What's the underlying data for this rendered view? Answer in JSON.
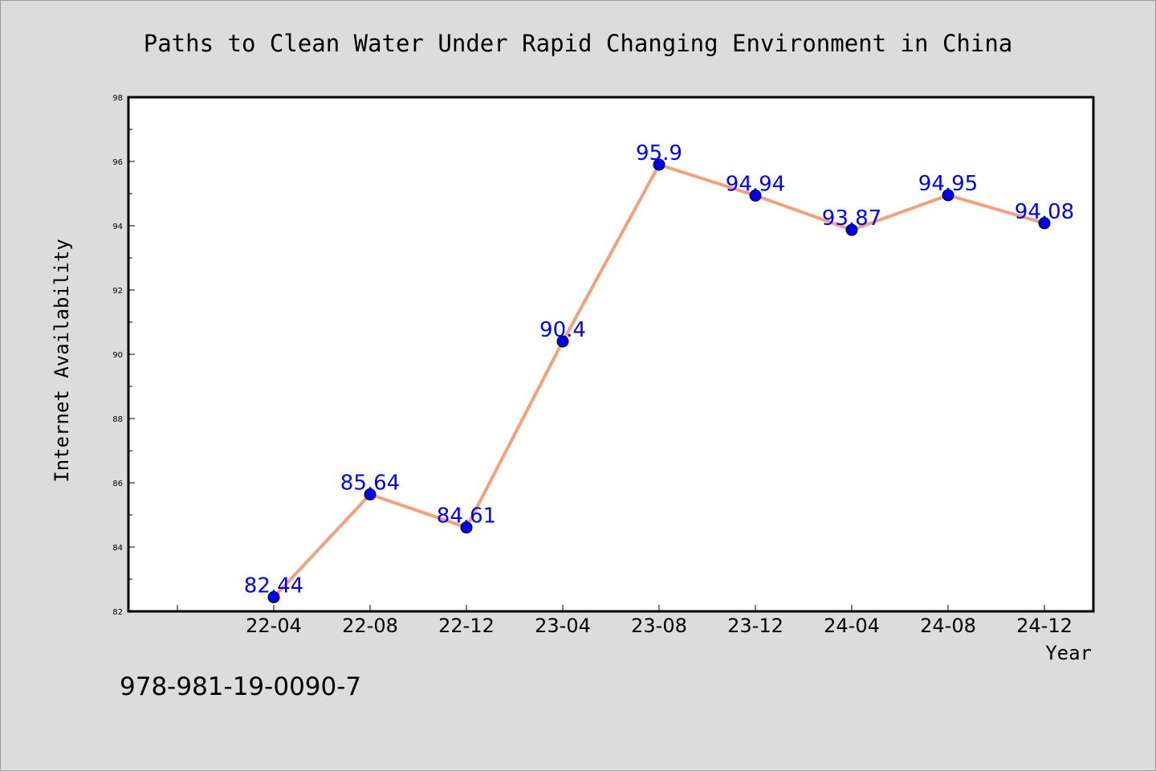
{
  "chart_data": {
    "type": "line",
    "title": "Paths to Clean Water Under Rapid Changing Environment in China",
    "xlabel": "Year",
    "ylabel": "Internet Availability",
    "categories": [
      "22-04",
      "22-08",
      "22-12",
      "23-04",
      "23-08",
      "23-12",
      "24-04",
      "24-08",
      "24-12"
    ],
    "series": [
      {
        "values": [
          82.44,
          85.64,
          84.61,
          90.4,
          95.9,
          94.94,
          93.87,
          94.95,
          94.08
        ],
        "labels": [
          "82.44",
          "85.64",
          "84.61",
          "90.4",
          "95.9",
          "94.94",
          "93.87",
          "94.95",
          "94.08"
        ],
        "line_color": "#f4a07c",
        "marker_color": "#0000ee"
      }
    ],
    "ylim": [
      82,
      98
    ],
    "yticks": [
      "82",
      "84",
      "86",
      "88",
      "90",
      "92",
      "94",
      "96",
      "98"
    ],
    "grid": false,
    "legend": "none"
  },
  "footer": {
    "isbn": "978-981-19-0090-7"
  },
  "colors": {
    "background": "#dcdcdc",
    "plot_background": "#ffffff",
    "data_label": "#0000ff"
  }
}
